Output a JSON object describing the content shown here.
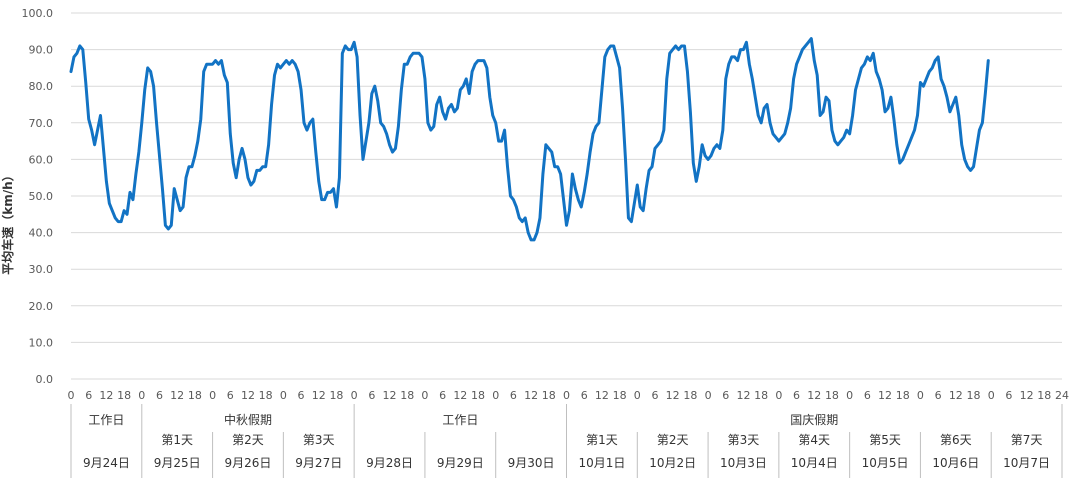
{
  "chart_data": {
    "type": "line",
    "ylabel": "平均车速（km/h）",
    "ylim": [
      0,
      100
    ],
    "yticks": [
      "0.0",
      "10.0",
      "20.0",
      "30.0",
      "40.0",
      "50.0",
      "60.0",
      "70.0",
      "80.0",
      "90.0",
      "100.0"
    ],
    "grid": true,
    "hours_per_day": [
      "0",
      "6",
      "12",
      "18"
    ],
    "final_hour_label": "24",
    "days": [
      {
        "date": "9月24日",
        "day_label": "",
        "group": 0
      },
      {
        "date": "9月25日",
        "day_label": "第1天",
        "group": 1
      },
      {
        "date": "9月26日",
        "day_label": "第2天",
        "group": 1
      },
      {
        "date": "9月27日",
        "day_label": "第3天",
        "group": 1
      },
      {
        "date": "9月28日",
        "day_label": "",
        "group": 2
      },
      {
        "date": "9月29日",
        "day_label": "",
        "group": 2
      },
      {
        "date": "9月30日",
        "day_label": "",
        "group": 2
      },
      {
        "date": "10月1日",
        "day_label": "第1天",
        "group": 3
      },
      {
        "date": "10月2日",
        "day_label": "第2天",
        "group": 3
      },
      {
        "date": "10月3日",
        "day_label": "第3天",
        "group": 3
      },
      {
        "date": "10月4日",
        "day_label": "第4天",
        "group": 3
      },
      {
        "date": "10月5日",
        "day_label": "第5天",
        "group": 3
      },
      {
        "date": "10月6日",
        "day_label": "第6天",
        "group": 3
      },
      {
        "date": "10月7日",
        "day_label": "第7天",
        "group": 3
      }
    ],
    "groups": [
      {
        "label": "工作日",
        "first_day": 0,
        "last_day": 0
      },
      {
        "label": "中秋假期",
        "first_day": 1,
        "last_day": 3
      },
      {
        "label": "工作日",
        "first_day": 4,
        "last_day": 6
      },
      {
        "label": "国庆假期",
        "first_day": 7,
        "last_day": 13
      }
    ],
    "series": [
      {
        "color": "#1273c4",
        "x_unit": "hour since 9月24日 00:00",
        "points": [
          [
            0,
            84
          ],
          [
            1,
            88
          ],
          [
            2,
            89
          ],
          [
            3,
            91
          ],
          [
            4,
            90
          ],
          [
            5,
            81
          ],
          [
            6,
            71
          ],
          [
            7,
            68
          ],
          [
            8,
            64
          ],
          [
            9,
            68
          ],
          [
            10,
            72
          ],
          [
            11,
            63
          ],
          [
            12,
            54
          ],
          [
            13,
            48
          ],
          [
            14,
            46
          ],
          [
            15,
            44
          ],
          [
            16,
            43
          ],
          [
            17,
            43
          ],
          [
            18,
            46
          ],
          [
            19,
            45
          ],
          [
            20,
            51
          ],
          [
            21,
            49
          ],
          [
            22,
            56
          ],
          [
            23,
            62
          ],
          [
            24,
            70
          ],
          [
            25,
            79
          ],
          [
            26,
            85
          ],
          [
            27,
            84
          ],
          [
            28,
            80
          ],
          [
            29,
            70
          ],
          [
            30,
            61
          ],
          [
            31,
            52
          ],
          [
            32,
            42
          ],
          [
            33,
            41
          ],
          [
            34,
            42
          ],
          [
            35,
            52
          ],
          [
            36,
            49
          ],
          [
            37,
            46
          ],
          [
            38,
            47
          ],
          [
            39,
            55
          ],
          [
            40,
            58
          ],
          [
            41,
            58
          ],
          [
            42,
            61
          ],
          [
            43,
            65
          ],
          [
            44,
            71
          ],
          [
            45,
            84
          ],
          [
            46,
            86
          ],
          [
            47,
            86
          ],
          [
            48,
            86
          ],
          [
            49,
            87
          ],
          [
            50,
            86
          ],
          [
            51,
            87
          ],
          [
            52,
            83
          ],
          [
            53,
            81
          ],
          [
            54,
            67
          ],
          [
            55,
            59
          ],
          [
            56,
            55
          ],
          [
            57,
            60
          ],
          [
            58,
            63
          ],
          [
            59,
            60
          ],
          [
            60,
            55
          ],
          [
            61,
            53
          ],
          [
            62,
            54
          ],
          [
            63,
            57
          ],
          [
            64,
            57
          ],
          [
            65,
            58
          ],
          [
            66,
            58
          ],
          [
            67,
            64
          ],
          [
            68,
            75
          ],
          [
            69,
            83
          ],
          [
            70,
            86
          ],
          [
            71,
            85
          ],
          [
            72,
            86
          ],
          [
            73,
            87
          ],
          [
            74,
            86
          ],
          [
            75,
            87
          ],
          [
            76,
            86
          ],
          [
            77,
            84
          ],
          [
            78,
            79
          ],
          [
            79,
            70
          ],
          [
            80,
            68
          ],
          [
            81,
            70
          ],
          [
            82,
            71
          ],
          [
            83,
            62
          ],
          [
            84,
            54
          ],
          [
            85,
            49
          ],
          [
            86,
            49
          ],
          [
            87,
            51
          ],
          [
            88,
            51
          ],
          [
            89,
            52
          ],
          [
            90,
            47
          ],
          [
            91,
            55
          ],
          [
            92,
            89
          ],
          [
            93,
            91
          ],
          [
            94,
            90
          ],
          [
            95,
            90
          ],
          [
            96,
            92
          ],
          [
            97,
            88
          ],
          [
            98,
            72
          ],
          [
            99,
            60
          ],
          [
            100,
            65
          ],
          [
            101,
            70
          ],
          [
            102,
            78
          ],
          [
            103,
            80
          ],
          [
            104,
            76
          ],
          [
            105,
            70
          ],
          [
            106,
            69
          ],
          [
            107,
            67
          ],
          [
            108,
            64
          ],
          [
            109,
            62
          ],
          [
            110,
            63
          ],
          [
            111,
            69
          ],
          [
            112,
            79
          ],
          [
            113,
            86
          ],
          [
            114,
            86
          ],
          [
            115,
            88
          ],
          [
            116,
            89
          ],
          [
            117,
            89
          ],
          [
            118,
            89
          ],
          [
            119,
            88
          ],
          [
            120,
            82
          ],
          [
            121,
            70
          ],
          [
            122,
            68
          ],
          [
            123,
            69
          ],
          [
            124,
            75
          ],
          [
            125,
            77
          ],
          [
            126,
            73
          ],
          [
            127,
            71
          ],
          [
            128,
            74
          ],
          [
            129,
            75
          ],
          [
            130,
            73
          ],
          [
            131,
            74
          ],
          [
            132,
            79
          ],
          [
            133,
            80
          ],
          [
            134,
            82
          ],
          [
            135,
            78
          ],
          [
            136,
            84
          ],
          [
            137,
            86
          ],
          [
            138,
            87
          ],
          [
            139,
            87
          ],
          [
            140,
            87
          ],
          [
            141,
            85
          ],
          [
            142,
            77
          ],
          [
            143,
            72
          ],
          [
            144,
            70
          ],
          [
            145,
            65
          ],
          [
            146,
            65
          ],
          [
            147,
            68
          ],
          [
            148,
            58
          ],
          [
            149,
            50
          ],
          [
            150,
            49
          ],
          [
            151,
            47
          ],
          [
            152,
            44
          ],
          [
            153,
            43
          ],
          [
            154,
            44
          ],
          [
            155,
            40
          ],
          [
            156,
            38
          ],
          [
            157,
            38
          ],
          [
            158,
            40
          ],
          [
            159,
            44
          ],
          [
            160,
            56
          ],
          [
            161,
            64
          ],
          [
            162,
            63
          ],
          [
            163,
            62
          ],
          [
            164,
            58
          ],
          [
            165,
            58
          ],
          [
            166,
            56
          ],
          [
            167,
            49
          ],
          [
            168,
            42
          ],
          [
            169,
            46
          ],
          [
            170,
            56
          ],
          [
            171,
            52
          ],
          [
            172,
            49
          ],
          [
            173,
            47
          ],
          [
            174,
            51
          ],
          [
            175,
            56
          ],
          [
            176,
            62
          ],
          [
            177,
            67
          ],
          [
            178,
            69
          ],
          [
            179,
            70
          ],
          [
            180,
            79
          ],
          [
            181,
            88
          ],
          [
            182,
            90
          ],
          [
            183,
            91
          ],
          [
            184,
            91
          ],
          [
            185,
            88
          ],
          [
            186,
            85
          ],
          [
            187,
            74
          ],
          [
            188,
            60
          ],
          [
            189,
            44
          ],
          [
            190,
            43
          ],
          [
            191,
            48
          ],
          [
            192,
            53
          ],
          [
            193,
            47
          ],
          [
            194,
            46
          ],
          [
            195,
            52
          ],
          [
            196,
            57
          ],
          [
            197,
            58
          ],
          [
            198,
            63
          ],
          [
            199,
            64
          ],
          [
            200,
            65
          ],
          [
            201,
            68
          ],
          [
            202,
            82
          ],
          [
            203,
            89
          ],
          [
            204,
            90
          ],
          [
            205,
            91
          ],
          [
            206,
            90
          ],
          [
            207,
            91
          ],
          [
            208,
            91
          ],
          [
            209,
            84
          ],
          [
            210,
            73
          ],
          [
            211,
            59
          ],
          [
            212,
            54
          ],
          [
            213,
            58
          ],
          [
            214,
            64
          ],
          [
            215,
            61
          ],
          [
            216,
            60
          ],
          [
            217,
            61
          ],
          [
            218,
            63
          ],
          [
            219,
            64
          ],
          [
            220,
            63
          ],
          [
            221,
            68
          ],
          [
            222,
            82
          ],
          [
            223,
            86
          ],
          [
            224,
            88
          ],
          [
            225,
            88
          ],
          [
            226,
            87
          ],
          [
            227,
            90
          ],
          [
            228,
            90
          ],
          [
            229,
            92
          ],
          [
            230,
            86
          ],
          [
            231,
            82
          ],
          [
            232,
            77
          ],
          [
            233,
            72
          ],
          [
            234,
            70
          ],
          [
            235,
            74
          ],
          [
            236,
            75
          ],
          [
            237,
            70
          ],
          [
            238,
            67
          ],
          [
            239,
            66
          ],
          [
            240,
            65
          ],
          [
            241,
            66
          ],
          [
            242,
            67
          ],
          [
            243,
            70
          ],
          [
            244,
            74
          ],
          [
            245,
            82
          ],
          [
            246,
            86
          ],
          [
            247,
            88
          ],
          [
            248,
            90
          ],
          [
            249,
            91
          ],
          [
            250,
            92
          ],
          [
            251,
            93
          ],
          [
            252,
            87
          ],
          [
            253,
            83
          ],
          [
            254,
            72
          ],
          [
            255,
            73
          ],
          [
            256,
            77
          ],
          [
            257,
            76
          ],
          [
            258,
            68
          ],
          [
            259,
            65
          ],
          [
            260,
            64
          ],
          [
            261,
            65
          ],
          [
            262,
            66
          ],
          [
            263,
            68
          ],
          [
            264,
            67
          ],
          [
            265,
            72
          ],
          [
            266,
            79
          ],
          [
            267,
            82
          ],
          [
            268,
            85
          ],
          [
            269,
            86
          ],
          [
            270,
            88
          ],
          [
            271,
            87
          ],
          [
            272,
            89
          ],
          [
            273,
            84
          ],
          [
            274,
            82
          ],
          [
            275,
            79
          ],
          [
            276,
            73
          ],
          [
            277,
            74
          ],
          [
            278,
            77
          ],
          [
            279,
            71
          ],
          [
            280,
            64
          ],
          [
            281,
            59
          ],
          [
            282,
            60
          ],
          [
            283,
            62
          ],
          [
            284,
            64
          ],
          [
            285,
            66
          ],
          [
            286,
            68
          ],
          [
            287,
            72
          ],
          [
            288,
            81
          ],
          [
            289,
            80
          ],
          [
            290,
            82
          ],
          [
            291,
            84
          ],
          [
            292,
            85
          ],
          [
            293,
            87
          ],
          [
            294,
            88
          ],
          [
            295,
            82
          ],
          [
            296,
            80
          ],
          [
            297,
            77
          ],
          [
            298,
            73
          ],
          [
            299,
            75
          ],
          [
            300,
            77
          ],
          [
            301,
            72
          ],
          [
            302,
            64
          ],
          [
            303,
            60
          ],
          [
            304,
            58
          ],
          [
            305,
            57
          ],
          [
            306,
            58
          ],
          [
            307,
            63
          ],
          [
            308,
            68
          ],
          [
            309,
            70
          ],
          [
            310,
            78
          ],
          [
            311,
            87
          ]
        ]
      }
    ]
  }
}
